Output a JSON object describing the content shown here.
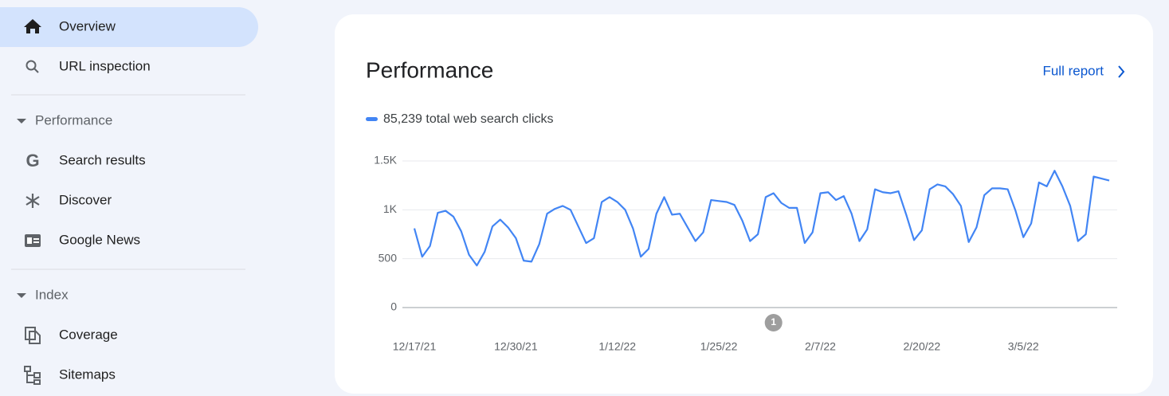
{
  "nav": {
    "items": [
      "Overview",
      "URL inspection"
    ],
    "sections": [
      {
        "title": "Performance",
        "items": [
          "Search results",
          "Discover",
          "Google News"
        ]
      },
      {
        "title": "Index",
        "items": [
          "Coverage",
          "Sitemaps"
        ]
      }
    ]
  },
  "card": {
    "title": "Performance",
    "link": "Full report"
  },
  "chart_data": {
    "type": "line",
    "categories": [
      "12/17/21",
      null,
      null,
      null,
      null,
      null,
      null,
      null,
      null,
      null,
      null,
      null,
      null,
      "12/30/21",
      null,
      null,
      null,
      null,
      null,
      null,
      null,
      null,
      null,
      null,
      null,
      null,
      "1/12/22",
      null,
      null,
      null,
      null,
      null,
      null,
      null,
      null,
      null,
      null,
      null,
      null,
      "1/25/22",
      null,
      null,
      null,
      null,
      null,
      null,
      null,
      null,
      null,
      null,
      null,
      null,
      "2/7/22",
      null,
      null,
      null,
      null,
      null,
      null,
      null,
      null,
      null,
      null,
      null,
      null,
      "2/20/22",
      null,
      null,
      null,
      null,
      null,
      null,
      null,
      null,
      null,
      null,
      null,
      null,
      "3/5/22",
      null,
      null,
      null,
      null,
      null,
      null,
      null,
      null,
      null,
      null,
      null
    ],
    "series": [
      {
        "name": "85,239 total web search clicks",
        "color": "#4285f4",
        "values": [
          810,
          520,
          630,
          970,
          990,
          930,
          780,
          540,
          430,
          570,
          830,
          900,
          820,
          710,
          480,
          470,
          650,
          960,
          1010,
          1040,
          1000,
          830,
          660,
          710,
          1080,
          1130,
          1080,
          1000,
          810,
          520,
          600,
          960,
          1130,
          950,
          960,
          820,
          680,
          770,
          1100,
          1090,
          1080,
          1050,
          890,
          680,
          750,
          1130,
          1170,
          1070,
          1020,
          1020,
          660,
          770,
          1170,
          1180,
          1100,
          1140,
          960,
          680,
          800,
          1210,
          1180,
          1170,
          1190,
          950,
          690,
          790,
          1210,
          1260,
          1240,
          1160,
          1040,
          670,
          820,
          1150,
          1220,
          1220,
          1210,
          990,
          720,
          860,
          1280,
          1240,
          1400,
          1240,
          1040,
          680,
          750,
          1340,
          1320,
          1300
        ]
      }
    ],
    "ylim": [
      0,
      1500
    ],
    "yticks": [
      0,
      500,
      {
        "value": 1000,
        "label": "1K"
      },
      {
        "value": 1500,
        "label": "1.5K"
      }
    ],
    "grid": true,
    "annotations": [
      {
        "index": 46,
        "text": "1"
      }
    ]
  }
}
